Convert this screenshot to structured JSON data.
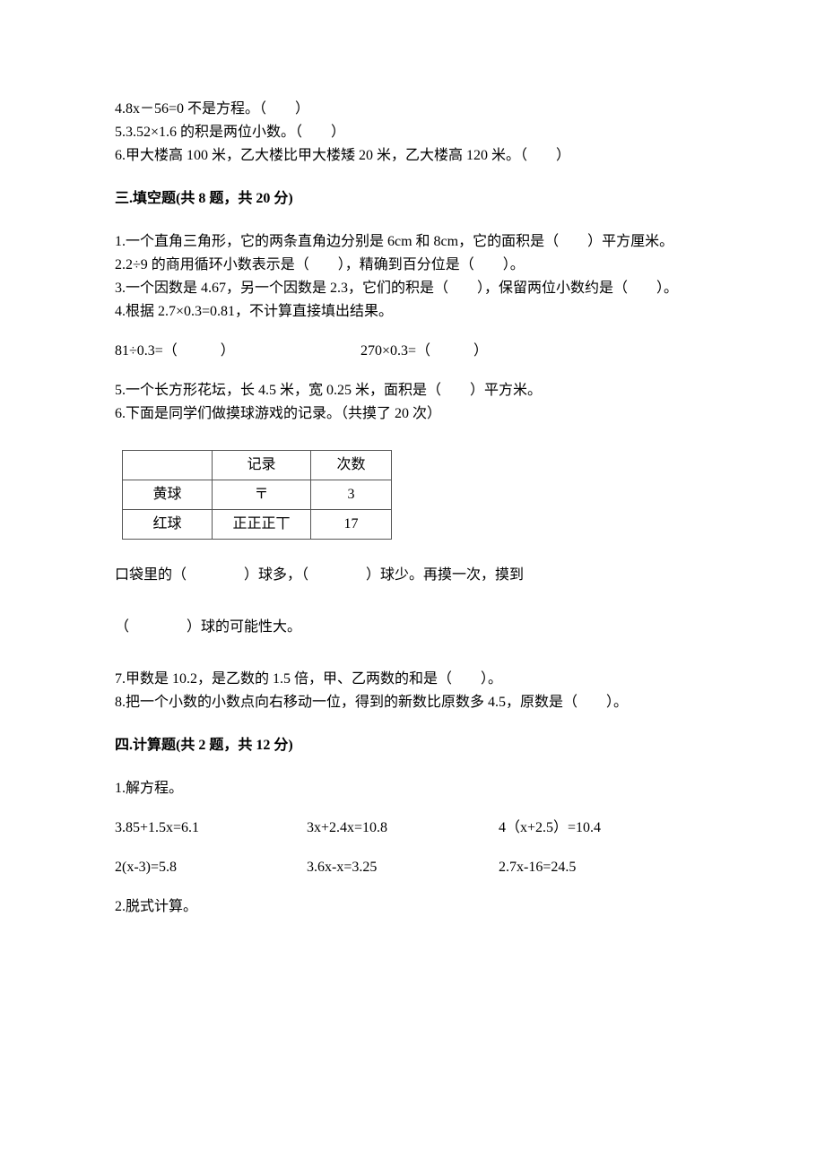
{
  "judge": {
    "q4": "4.8x－56=0 不是方程。（　　）",
    "q5": "5.3.52×1.6 的积是两位小数。（　　）",
    "q6": "6.甲大楼高 100 米，乙大楼比甲大楼矮 20 米，乙大楼高 120 米。（　　）"
  },
  "section3_heading": "三.填空题(共 8 题，共 20 分)",
  "fill": {
    "q1": "1.一个直角三角形，它的两条直角边分别是 6cm 和 8cm，它的面积是（　　）平方厘米。",
    "q2": "2.2÷9 的商用循环小数表示是（　　），精确到百分位是（　　）。",
    "q3": "3.一个因数是 4.67，另一个因数是 2.3，它们的积是（　　），保留两位小数约是（　　）。",
    "q4": "4.根据 2.7×0.3=0.81，不计算直接填出结果。",
    "q4_expr_a": "81÷0.3=（　　　）",
    "q4_expr_b": "270×0.3=（　　　）",
    "q5": "5.一个长方形花坛，长 4.5 米，宽 0.25 米，面积是（　　）平方米。",
    "q6_intro": "6.下面是同学们做摸球游戏的记录。（共摸了 20 次）",
    "q6_p1": "口袋里的（　　　　）球多，（　　　　）球少。再摸一次，摸到",
    "q6_p2": "（　　　　）球的可能性大。",
    "q7": "7.甲数是 10.2，是乙数的 1.5 倍，甲、乙两数的和是（　　）。",
    "q8": "8.把一个小数的小数点向右移动一位，得到的新数比原数多 4.5，原数是（　　）。"
  },
  "tally_table": {
    "header_col2": "记录",
    "header_col3": "次数",
    "row1_label": "黄球",
    "row1_tally": "〒",
    "row1_count": "3",
    "row2_label": "红球",
    "row2_tally": "正正正丅",
    "row2_count": "17",
    "border_color": "#555555"
  },
  "section4_heading": "四.计算题(共 2 题，共 12 分)",
  "calc": {
    "q1_label": "1.解方程。",
    "eq_row1_a": "3.85+1.5x=6.1",
    "eq_row1_b": "3x+2.4x=10.8",
    "eq_row1_c": "4（x+2.5）=10.4",
    "eq_row2_a": "2(x-3)=5.8",
    "eq_row2_b": "3.6x-x=3.25",
    "eq_row2_c": "2.7x-16=24.5",
    "q2_label": "2.脱式计算。"
  }
}
